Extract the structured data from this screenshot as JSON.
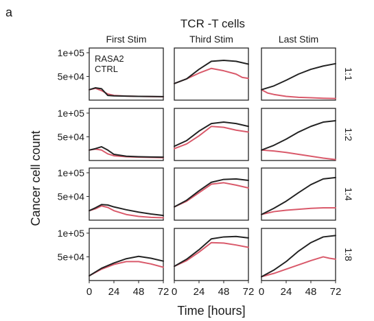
{
  "figure": {
    "panel_letter": "a",
    "title": "TCR -T cells",
    "ylabel": "Cancer cell count",
    "xlabel": "Time [hours]"
  },
  "columns": [
    "First Stim",
    "Third Stim",
    "Last Stim"
  ],
  "rows": [
    "1:1",
    "1:2",
    "1:4",
    "1:8"
  ],
  "ytick_labels": [
    "1e+05",
    "5e+04"
  ],
  "xtick_labels": [
    "0",
    "24",
    "48",
    "72"
  ],
  "legend": [
    {
      "label": "RASA2",
      "color": "#d9596a"
    },
    {
      "label": "CTRL",
      "color": "#222222"
    }
  ],
  "colors": {
    "rasa2": "#d9596a",
    "ctrl": "#222222",
    "frame": "#222222"
  },
  "chart_data": {
    "type": "line",
    "title": "TCR -T cells",
    "xlabel": "Time [hours]",
    "ylabel": "Cancer cell count",
    "xlim": [
      0,
      72
    ],
    "ylim": [
      0,
      110000
    ],
    "xticks": [
      0,
      24,
      48,
      72
    ],
    "yticks": [
      50000,
      100000
    ],
    "legend_position": "top-left (first panel)",
    "grid": false,
    "panels": [
      {
        "row": "1:1",
        "column": "First Stim",
        "series": [
          {
            "name": "RASA2",
            "x": [
              0,
              6,
              12,
              18,
              24,
              36,
              48,
              60,
              72
            ],
            "y": [
              22000,
              25000,
              20000,
              13000,
              10000,
              8500,
              8000,
              7500,
              7000
            ]
          },
          {
            "name": "CTRL",
            "x": [
              0,
              6,
              12,
              18,
              24,
              36,
              48,
              60,
              72
            ],
            "y": [
              22000,
              26000,
              24000,
              10000,
              9000,
              8500,
              8000,
              7800,
              7500
            ]
          }
        ]
      },
      {
        "row": "1:1",
        "column": "Third Stim",
        "series": [
          {
            "name": "RASA2",
            "x": [
              0,
              12,
              24,
              36,
              48,
              60,
              66,
              72
            ],
            "y": [
              35000,
              45000,
              57000,
              67000,
              62000,
              55000,
              48000,
              46000
            ]
          },
          {
            "name": "CTRL",
            "x": [
              0,
              12,
              24,
              36,
              48,
              60,
              72
            ],
            "y": [
              35000,
              45000,
              65000,
              82000,
              84000,
              82000,
              76000
            ]
          }
        ]
      },
      {
        "row": "1:1",
        "column": "Last Stim",
        "series": [
          {
            "name": "RASA2",
            "x": [
              0,
              6,
              12,
              24,
              36,
              48,
              60,
              72
            ],
            "y": [
              22000,
              15000,
              12000,
              8000,
              6000,
              5000,
              4000,
              3500
            ]
          },
          {
            "name": "CTRL",
            "x": [
              0,
              12,
              24,
              36,
              48,
              60,
              72
            ],
            "y": [
              22000,
              30000,
              42000,
              55000,
              65000,
              72000,
              77000
            ]
          }
        ]
      },
      {
        "row": "1:2",
        "column": "First Stim",
        "series": [
          {
            "name": "RASA2",
            "x": [
              0,
              6,
              12,
              18,
              24,
              36,
              48,
              60,
              72
            ],
            "y": [
              22000,
              24000,
              22000,
              14000,
              10000,
              8000,
              7000,
              6500,
              6000
            ]
          },
          {
            "name": "CTRL",
            "x": [
              0,
              6,
              12,
              18,
              24,
              36,
              48,
              60,
              72
            ],
            "y": [
              22000,
              25000,
              29000,
              22000,
              13000,
              9000,
              8000,
              7500,
              7000
            ]
          }
        ]
      },
      {
        "row": "1:2",
        "column": "Third Stim",
        "series": [
          {
            "name": "RASA2",
            "x": [
              0,
              12,
              24,
              36,
              48,
              60,
              72
            ],
            "y": [
              25000,
              35000,
              52000,
              72000,
              70000,
              64000,
              60000
            ]
          },
          {
            "name": "CTRL",
            "x": [
              0,
              12,
              24,
              36,
              48,
              60,
              72
            ],
            "y": [
              30000,
              42000,
              62000,
              78000,
              81000,
              78000,
              72000
            ]
          }
        ]
      },
      {
        "row": "1:2",
        "column": "Last Stim",
        "series": [
          {
            "name": "RASA2",
            "x": [
              0,
              12,
              24,
              36,
              48,
              60,
              72
            ],
            "y": [
              22000,
              20000,
              17000,
              13000,
              9000,
              5000,
              2000
            ]
          },
          {
            "name": "CTRL",
            "x": [
              0,
              12,
              24,
              36,
              48,
              60,
              72
            ],
            "y": [
              22000,
              32000,
              45000,
              60000,
              72000,
              81000,
              84000
            ]
          }
        ]
      },
      {
        "row": "1:4",
        "column": "First Stim",
        "series": [
          {
            "name": "RASA2",
            "x": [
              0,
              6,
              12,
              18,
              24,
              36,
              48,
              60,
              72
            ],
            "y": [
              20000,
              24000,
              30000,
              27000,
              20000,
              12000,
              8000,
              6000,
              5000
            ]
          },
          {
            "name": "CTRL",
            "x": [
              0,
              6,
              12,
              18,
              24,
              36,
              48,
              60,
              72
            ],
            "y": [
              20000,
              26000,
              33000,
              32000,
              28000,
              22000,
              17000,
              13000,
              10000
            ]
          }
        ]
      },
      {
        "row": "1:4",
        "column": "Third Stim",
        "series": [
          {
            "name": "RASA2",
            "x": [
              0,
              12,
              24,
              36,
              48,
              60,
              72
            ],
            "y": [
              28000,
              40000,
              58000,
              76000,
              79000,
              74000,
              68000
            ]
          },
          {
            "name": "CTRL",
            "x": [
              0,
              12,
              24,
              36,
              48,
              60,
              72
            ],
            "y": [
              28000,
              42000,
              62000,
              80000,
              86000,
              87000,
              84000
            ]
          }
        ]
      },
      {
        "row": "1:4",
        "column": "Last Stim",
        "series": [
          {
            "name": "RASA2",
            "x": [
              0,
              12,
              24,
              36,
              48,
              60,
              72
            ],
            "y": [
              12000,
              18000,
              21000,
              23000,
              25000,
              26000,
              26000
            ]
          },
          {
            "name": "CTRL",
            "x": [
              0,
              12,
              24,
              36,
              48,
              60,
              72
            ],
            "y": [
              12000,
              25000,
              40000,
              58000,
              75000,
              87000,
              90000
            ]
          }
        ]
      },
      {
        "row": "1:8",
        "column": "First Stim",
        "series": [
          {
            "name": "RASA2",
            "x": [
              0,
              12,
              24,
              36,
              48,
              60,
              72
            ],
            "y": [
              10000,
              24000,
              34000,
              40000,
              40000,
              35000,
              28000
            ]
          },
          {
            "name": "CTRL",
            "x": [
              0,
              12,
              24,
              36,
              48,
              60,
              72
            ],
            "y": [
              10000,
              26000,
              37000,
              46000,
              51000,
              47000,
              41000
            ]
          }
        ]
      },
      {
        "row": "1:8",
        "column": "Third Stim",
        "series": [
          {
            "name": "RASA2",
            "x": [
              0,
              12,
              24,
              36,
              48,
              60,
              72
            ],
            "y": [
              30000,
              42000,
              60000,
              80000,
              79000,
              75000,
              70000
            ]
          },
          {
            "name": "CTRL",
            "x": [
              0,
              12,
              24,
              36,
              48,
              60,
              72
            ],
            "y": [
              30000,
              45000,
              65000,
              88000,
              92000,
              93000,
              90000
            ]
          }
        ]
      },
      {
        "row": "1:8",
        "column": "Last Stim",
        "series": [
          {
            "name": "RASA2",
            "x": [
              0,
              12,
              24,
              36,
              48,
              60,
              66,
              72
            ],
            "y": [
              8000,
              15000,
              24000,
              33000,
              42000,
              50000,
              47000,
              45000
            ]
          },
          {
            "name": "CTRL",
            "x": [
              0,
              12,
              24,
              36,
              48,
              60,
              72
            ],
            "y": [
              8000,
              22000,
              40000,
              62000,
              80000,
              92000,
              95000
            ]
          }
        ]
      }
    ]
  }
}
